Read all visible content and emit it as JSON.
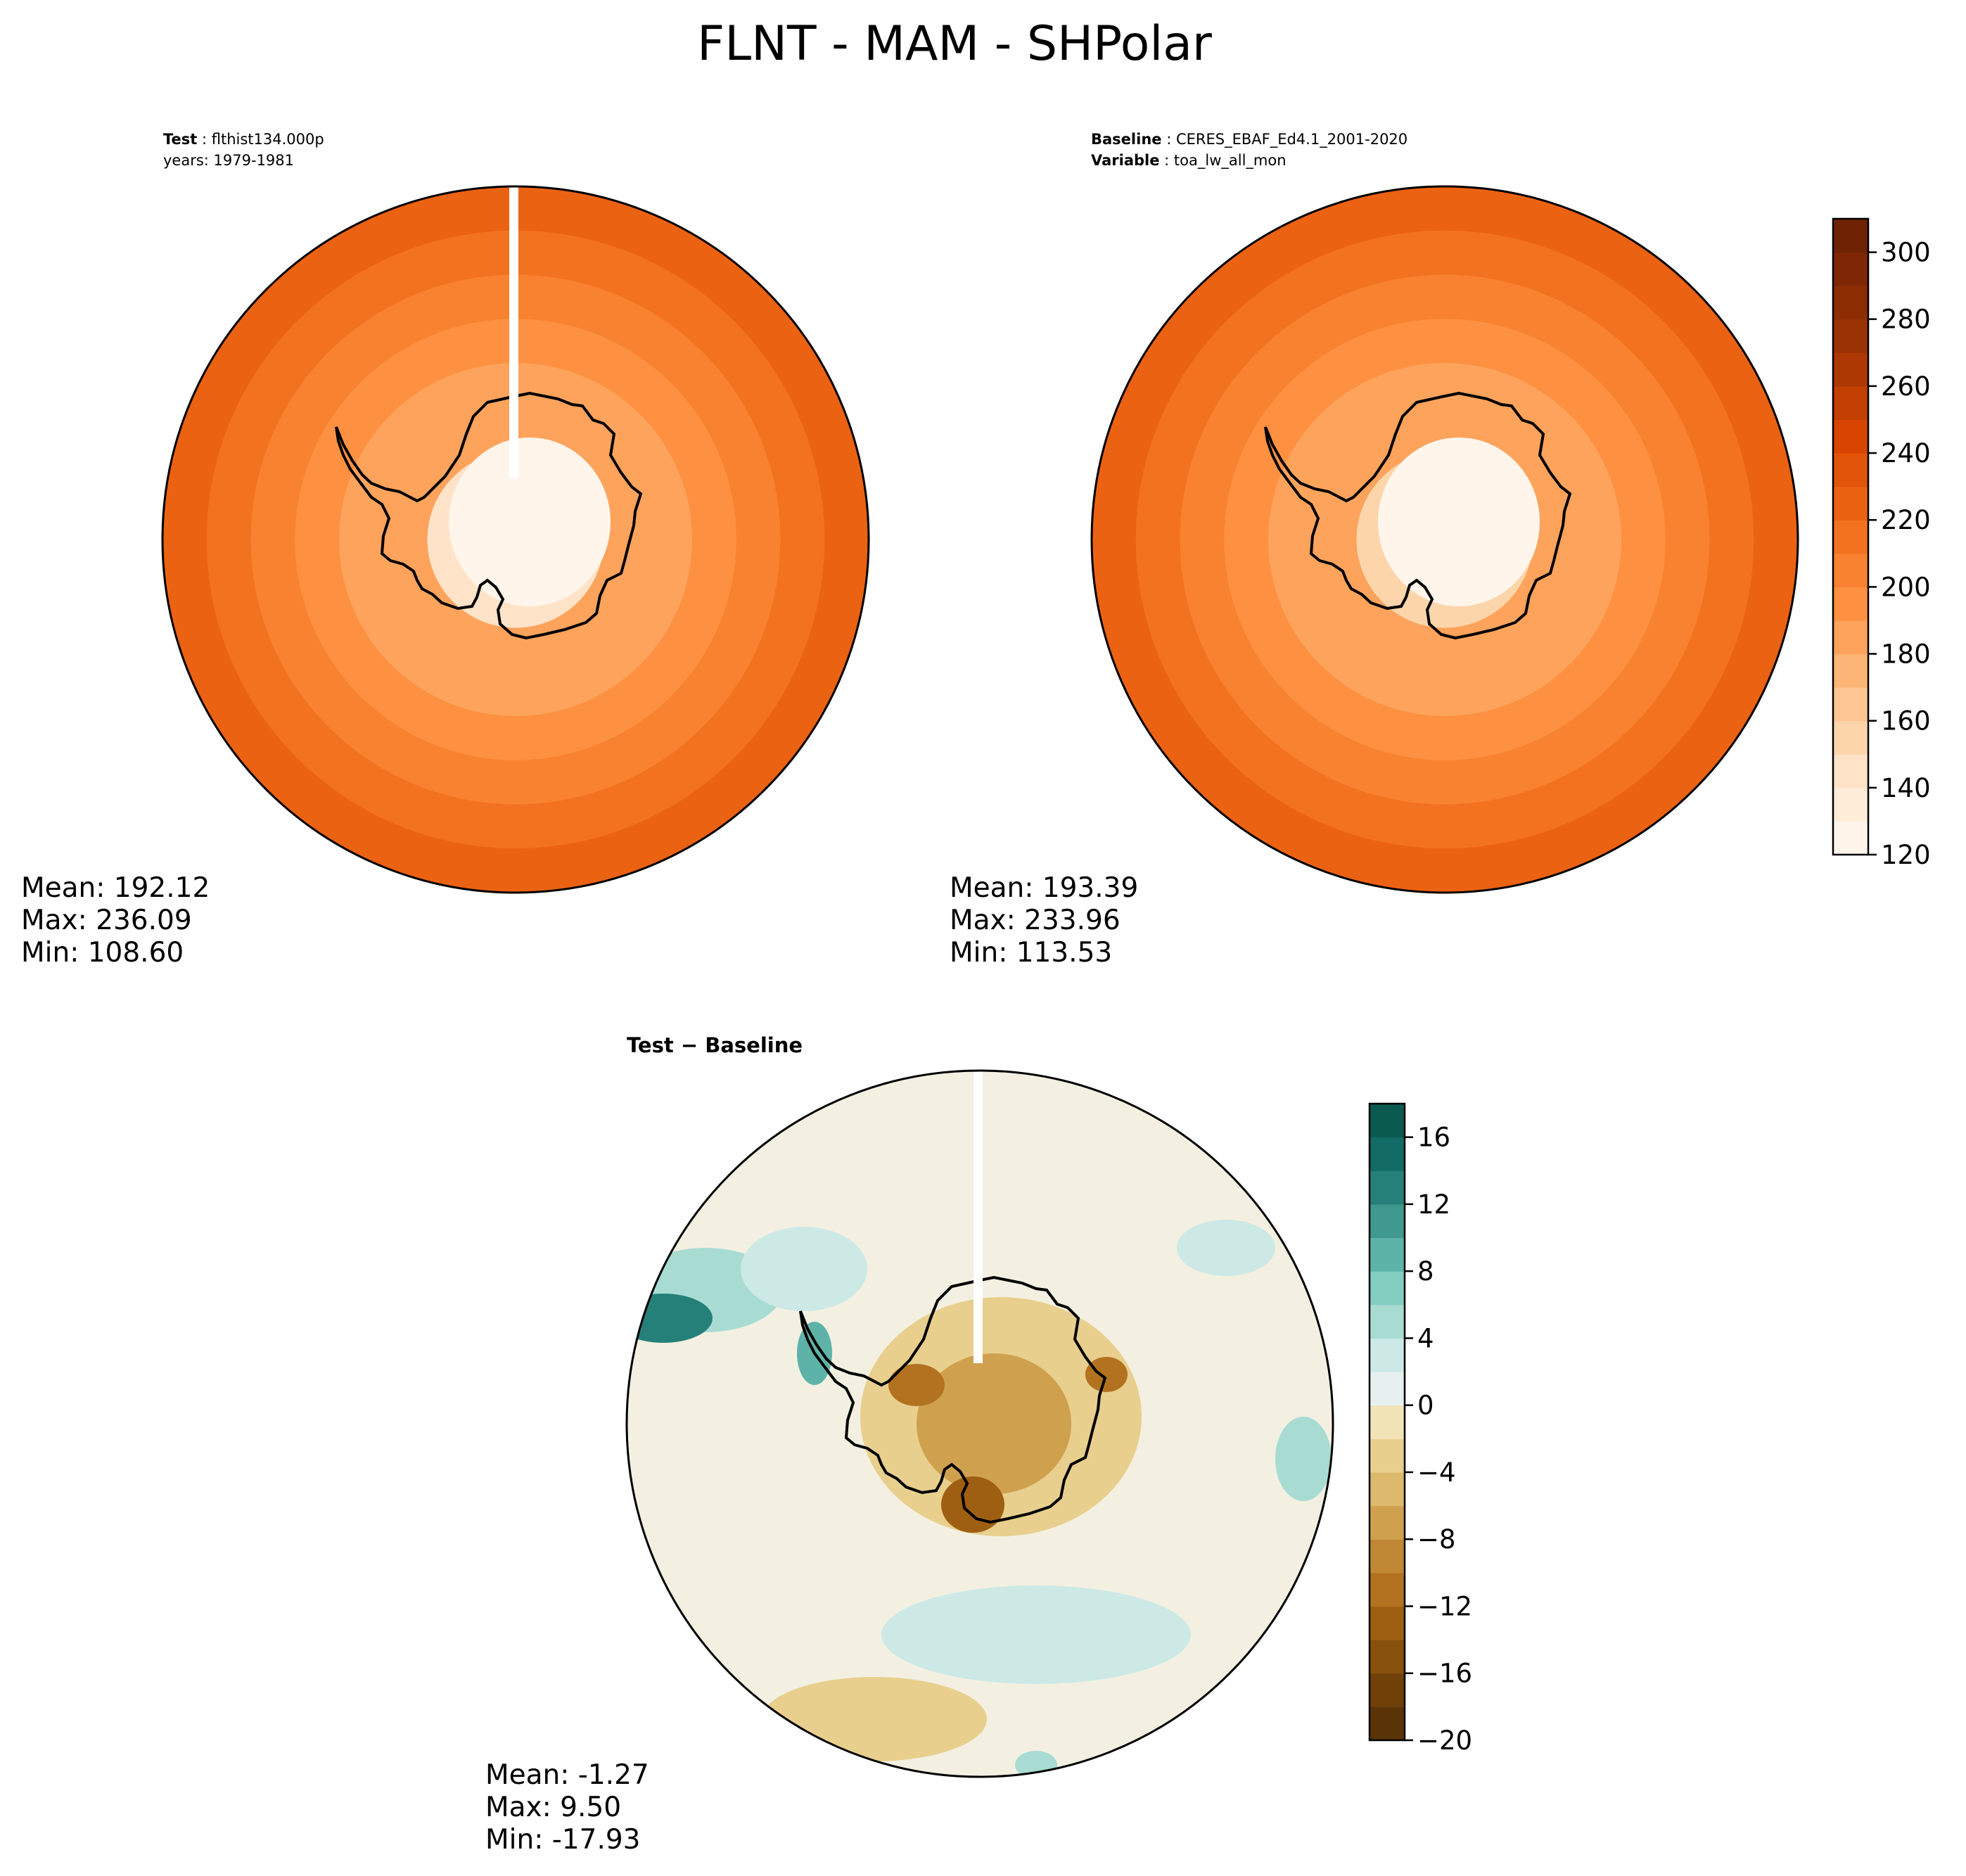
{
  "figure": {
    "title": "FLNT - MAM - SHPolar"
  },
  "chart_data": [
    {
      "type": "heatmap",
      "panel": "test",
      "projection": "south-polar-stereographic",
      "header": {
        "key1": "Test",
        "val1": "flthist134.000p",
        "line2": "years: 1979-1981"
      },
      "stats": {
        "mean": "Mean: 192.12",
        "max": "Max: 236.09",
        "min": "Min: 108.60"
      },
      "mean": 192.12,
      "max": 236.09,
      "min": 108.6,
      "ring_values": [
        {
          "lat": -90,
          "value": 110
        },
        {
          "lat": -80,
          "value": 145
        },
        {
          "lat": -70,
          "value": 180
        },
        {
          "lat": -65,
          "value": 195
        },
        {
          "lat": -60,
          "value": 205
        },
        {
          "lat": -55,
          "value": 215
        },
        {
          "lat": -50,
          "value": 225
        }
      ]
    },
    {
      "type": "heatmap",
      "panel": "baseline",
      "projection": "south-polar-stereographic",
      "header": {
        "key1": "Baseline",
        "val1": "CERES_EBAF_Ed4.1_2001-2020",
        "key2": "Variable",
        "val2": "toa_lw_all_mon"
      },
      "stats": {
        "mean": "Mean: 193.39",
        "max": "Max: 233.96",
        "min": "Min: 113.53"
      },
      "mean": 193.39,
      "max": 233.96,
      "min": 113.53,
      "ring_values": [
        {
          "lat": -90,
          "value": 115
        },
        {
          "lat": -80,
          "value": 150
        },
        {
          "lat": -70,
          "value": 182
        },
        {
          "lat": -65,
          "value": 196
        },
        {
          "lat": -60,
          "value": 205
        },
        {
          "lat": -55,
          "value": 215
        },
        {
          "lat": -50,
          "value": 225
        }
      ],
      "colorbar": {
        "cmap": "Oranges",
        "levels": [
          120,
          130,
          140,
          150,
          160,
          170,
          180,
          190,
          200,
          210,
          220,
          230,
          240,
          250,
          260,
          270,
          280,
          290,
          300,
          310
        ],
        "ticks": [
          "120",
          "140",
          "160",
          "180",
          "200",
          "220",
          "240",
          "260",
          "280",
          "300"
        ],
        "colors": [
          "#fff5eb",
          "#ffecd9",
          "#fee3c8",
          "#fdd5ab",
          "#fdc692",
          "#fdb576",
          "#fda35c",
          "#fd9141",
          "#f98230",
          "#f3721f",
          "#eb6212",
          "#e25408",
          "#d74501",
          "#c33f02",
          "#ae3803",
          "#9b3203",
          "#8c2d04",
          "#7f2704",
          "#6f2204"
        ]
      }
    },
    {
      "type": "heatmap",
      "panel": "difference",
      "projection": "south-polar-stereographic",
      "title": "Test − Baseline",
      "stats": {
        "mean": "Mean: -1.27",
        "max": "Max:  9.50",
        "min": "Min: -17.93"
      },
      "mean": -1.27,
      "max": 9.5,
      "min": -17.93,
      "colorbar": {
        "cmap": "BrBG",
        "levels": [
          -20,
          -18,
          -16,
          -14,
          -12,
          -10,
          -8,
          -6,
          -4,
          -2,
          0,
          2,
          4,
          6,
          8,
          10,
          12,
          14,
          16,
          18
        ],
        "ticks": [
          "−20",
          "−16",
          "−12",
          "−8",
          "−4",
          "0",
          "4",
          "8",
          "12",
          "16"
        ],
        "colors": [
          "#5a3407",
          "#6f4109",
          "#87500c",
          "#9f5f12",
          "#b2721f",
          "#c08735",
          "#cfa14f",
          "#dcb96d",
          "#e8cf8d",
          "#f2e3b7",
          "#e6f1ef",
          "#cce9e6",
          "#a8dcd3",
          "#83cdc1",
          "#5eb3a8",
          "#3f998e",
          "#26807a",
          "#126b64",
          "#0b5a4f"
        ]
      }
    }
  ]
}
